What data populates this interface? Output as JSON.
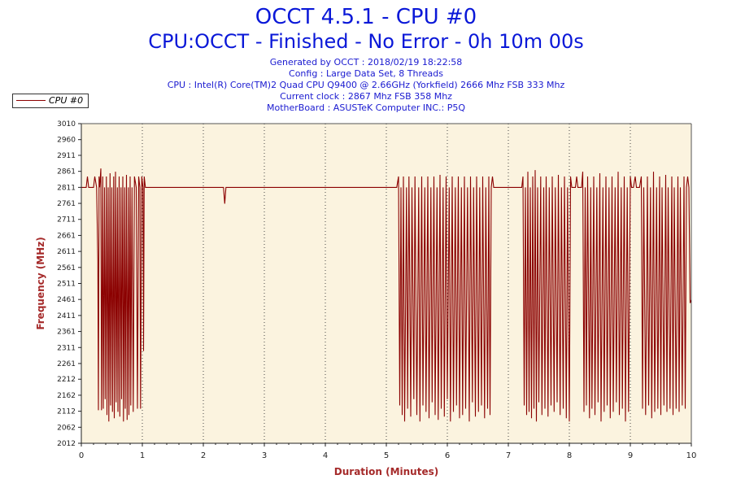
{
  "header": {
    "title": "OCCT 4.5.1 - CPU #0",
    "subtitle": "CPU:OCCT - Finished - No Error - 0h 10m 00s",
    "info_lines": [
      "Generated by OCCT : 2018/02/19 18:22:58",
      "Config : Large Data Set, 8 Threads",
      "CPU : Intel(R) Core(TM)2 Quad CPU Q9400 @ 2.66GHz (Yorkfield) 2666 Mhz FSB 333 Mhz",
      "Current clock : 2867 Mhz FSB 358 Mhz",
      "MotherBoard : ASUSTeK Computer INC.: P5Q"
    ]
  },
  "colors": {
    "title": "#0a18d8",
    "info": "#1a1ad0",
    "plot_background": "#fbf3df",
    "series_line": "#8b0000",
    "axis_label": "#a52a2a",
    "grid": "#444444"
  },
  "chart_data": {
    "type": "line",
    "xlabel": "Duration (Minutes)",
    "ylabel": "Frequency (MHz)",
    "xlim": [
      0,
      10
    ],
    "ylim": [
      2012,
      3010
    ],
    "x_ticks": [
      "0",
      "1",
      "2",
      "3",
      "4",
      "5",
      "6",
      "7",
      "8",
      "9",
      "10"
    ],
    "y_ticks": [
      "3010",
      "2960",
      "2911",
      "2861",
      "2811",
      "2761",
      "2711",
      "2661",
      "2611",
      "2561",
      "2511",
      "2461",
      "2411",
      "2361",
      "2311",
      "2261",
      "2212",
      "2162",
      "2112",
      "2062",
      "2012"
    ],
    "grid": "vertical dotted at each minute",
    "legend_position": "top-left",
    "series": [
      {
        "name": "CPU #0",
        "baseline": 2811,
        "points": [
          [
            0.0,
            2811
          ],
          [
            0.08,
            2811
          ],
          [
            0.1,
            2845
          ],
          [
            0.12,
            2811
          ],
          [
            0.2,
            2811
          ],
          [
            0.22,
            2845
          ],
          [
            0.25,
            2811
          ],
          [
            0.27,
            2580
          ],
          [
            0.28,
            2115
          ],
          [
            0.29,
            2845
          ],
          [
            0.3,
            2811
          ],
          [
            0.32,
            2870
          ],
          [
            0.33,
            2115
          ],
          [
            0.35,
            2845
          ],
          [
            0.36,
            2120
          ],
          [
            0.38,
            2811
          ],
          [
            0.39,
            2150
          ],
          [
            0.41,
            2845
          ],
          [
            0.42,
            2100
          ],
          [
            0.44,
            2811
          ],
          [
            0.45,
            2080
          ],
          [
            0.47,
            2855
          ],
          [
            0.48,
            2130
          ],
          [
            0.5,
            2811
          ],
          [
            0.51,
            2110
          ],
          [
            0.53,
            2845
          ],
          [
            0.54,
            2090
          ],
          [
            0.56,
            2860
          ],
          [
            0.57,
            2140
          ],
          [
            0.59,
            2811
          ],
          [
            0.6,
            2110
          ],
          [
            0.62,
            2845
          ],
          [
            0.63,
            2095
          ],
          [
            0.65,
            2811
          ],
          [
            0.66,
            2150
          ],
          [
            0.68,
            2845
          ],
          [
            0.69,
            2080
          ],
          [
            0.71,
            2811
          ],
          [
            0.72,
            2120
          ],
          [
            0.74,
            2850
          ],
          [
            0.75,
            2085
          ],
          [
            0.77,
            2811
          ],
          [
            0.78,
            2100
          ],
          [
            0.8,
            2845
          ],
          [
            0.81,
            2130
          ],
          [
            0.83,
            2811
          ],
          [
            0.85,
            2110
          ],
          [
            0.87,
            2845
          ],
          [
            0.9,
            2811
          ],
          [
            0.92,
            2120
          ],
          [
            0.94,
            2845
          ],
          [
            0.96,
            2811
          ],
          [
            0.97,
            2120
          ],
          [
            0.99,
            2845
          ],
          [
            1.01,
            2811
          ],
          [
            1.02,
            2300
          ],
          [
            1.03,
            2845
          ],
          [
            1.05,
            2811
          ],
          [
            2.33,
            2811
          ],
          [
            2.35,
            2760
          ],
          [
            2.37,
            2811
          ],
          [
            5.17,
            2811
          ],
          [
            5.2,
            2845
          ],
          [
            5.22,
            2130
          ],
          [
            5.24,
            2811
          ],
          [
            5.26,
            2100
          ],
          [
            5.28,
            2845
          ],
          [
            5.3,
            2080
          ],
          [
            5.33,
            2811
          ],
          [
            5.35,
            2120
          ],
          [
            5.37,
            2845
          ],
          [
            5.4,
            2095
          ],
          [
            5.42,
            2811
          ],
          [
            5.45,
            2150
          ],
          [
            5.47,
            2845
          ],
          [
            5.5,
            2100
          ],
          [
            5.53,
            2811
          ],
          [
            5.55,
            2080
          ],
          [
            5.58,
            2845
          ],
          [
            5.6,
            2130
          ],
          [
            5.63,
            2811
          ],
          [
            5.65,
            2110
          ],
          [
            5.68,
            2845
          ],
          [
            5.7,
            2090
          ],
          [
            5.73,
            2811
          ],
          [
            5.75,
            2140
          ],
          [
            5.78,
            2845
          ],
          [
            5.8,
            2100
          ],
          [
            5.83,
            2811
          ],
          [
            5.85,
            2085
          ],
          [
            5.88,
            2850
          ],
          [
            5.9,
            2120
          ],
          [
            5.93,
            2811
          ],
          [
            5.95,
            2095
          ],
          [
            5.98,
            2845
          ],
          [
            6.0,
            2150
          ],
          [
            6.03,
            2811
          ],
          [
            6.05,
            2080
          ],
          [
            6.08,
            2845
          ],
          [
            6.1,
            2110
          ],
          [
            6.13,
            2811
          ],
          [
            6.15,
            2130
          ],
          [
            6.18,
            2845
          ],
          [
            6.2,
            2090
          ],
          [
            6.23,
            2811
          ],
          [
            6.25,
            2100
          ],
          [
            6.28,
            2845
          ],
          [
            6.3,
            2120
          ],
          [
            6.33,
            2811
          ],
          [
            6.36,
            2080
          ],
          [
            6.38,
            2845
          ],
          [
            6.41,
            2140
          ],
          [
            6.43,
            2811
          ],
          [
            6.46,
            2095
          ],
          [
            6.48,
            2845
          ],
          [
            6.51,
            2110
          ],
          [
            6.53,
            2811
          ],
          [
            6.56,
            2130
          ],
          [
            6.58,
            2845
          ],
          [
            6.61,
            2090
          ],
          [
            6.63,
            2811
          ],
          [
            6.66,
            2120
          ],
          [
            6.68,
            2845
          ],
          [
            6.7,
            2100
          ],
          [
            6.72,
            2811
          ],
          [
            6.74,
            2845
          ],
          [
            6.76,
            2811
          ],
          [
            7.22,
            2811
          ],
          [
            7.24,
            2845
          ],
          [
            7.26,
            2130
          ],
          [
            7.28,
            2811
          ],
          [
            7.3,
            2100
          ],
          [
            7.32,
            2860
          ],
          [
            7.34,
            2110
          ],
          [
            7.36,
            2811
          ],
          [
            7.38,
            2090
          ],
          [
            7.4,
            2845
          ],
          [
            7.42,
            2120
          ],
          [
            7.44,
            2865
          ],
          [
            7.46,
            2080
          ],
          [
            7.48,
            2811
          ],
          [
            7.5,
            2140
          ],
          [
            7.53,
            2845
          ],
          [
            7.55,
            2100
          ],
          [
            7.58,
            2811
          ],
          [
            7.6,
            2120
          ],
          [
            7.62,
            2845
          ],
          [
            7.65,
            2095
          ],
          [
            7.67,
            2811
          ],
          [
            7.7,
            2130
          ],
          [
            7.72,
            2845
          ],
          [
            7.75,
            2110
          ],
          [
            7.77,
            2811
          ],
          [
            7.8,
            2140
          ],
          [
            7.82,
            2850
          ],
          [
            7.85,
            2100
          ],
          [
            7.87,
            2811
          ],
          [
            7.9,
            2120
          ],
          [
            7.92,
            2845
          ],
          [
            7.95,
            2090
          ],
          [
            7.97,
            2811
          ],
          [
            8.0,
            2080
          ],
          [
            8.02,
            2845
          ],
          [
            8.04,
            2811
          ],
          [
            8.1,
            2811
          ],
          [
            8.12,
            2845
          ],
          [
            8.14,
            2811
          ],
          [
            8.2,
            2811
          ],
          [
            8.22,
            2860
          ],
          [
            8.24,
            2110
          ],
          [
            8.26,
            2811
          ],
          [
            8.28,
            2130
          ],
          [
            8.3,
            2845
          ],
          [
            8.33,
            2090
          ],
          [
            8.35,
            2811
          ],
          [
            8.37,
            2120
          ],
          [
            8.4,
            2845
          ],
          [
            8.42,
            2100
          ],
          [
            8.45,
            2811
          ],
          [
            8.47,
            2140
          ],
          [
            8.5,
            2855
          ],
          [
            8.52,
            2080
          ],
          [
            8.55,
            2811
          ],
          [
            8.57,
            2110
          ],
          [
            8.6,
            2845
          ],
          [
            8.62,
            2130
          ],
          [
            8.65,
            2811
          ],
          [
            8.67,
            2090
          ],
          [
            8.7,
            2845
          ],
          [
            8.72,
            2110
          ],
          [
            8.75,
            2811
          ],
          [
            8.77,
            2140
          ],
          [
            8.8,
            2860
          ],
          [
            8.82,
            2100
          ],
          [
            8.85,
            2811
          ],
          [
            8.87,
            2120
          ],
          [
            8.9,
            2845
          ],
          [
            8.92,
            2080
          ],
          [
            8.95,
            2811
          ],
          [
            8.97,
            2110
          ],
          [
            9.0,
            2845
          ],
          [
            9.02,
            2811
          ],
          [
            9.05,
            2811
          ],
          [
            9.08,
            2845
          ],
          [
            9.1,
            2811
          ],
          [
            9.15,
            2811
          ],
          [
            9.18,
            2845
          ],
          [
            9.2,
            2120
          ],
          [
            9.22,
            2811
          ],
          [
            9.25,
            2100
          ],
          [
            9.28,
            2845
          ],
          [
            9.3,
            2130
          ],
          [
            9.33,
            2811
          ],
          [
            9.35,
            2090
          ],
          [
            9.38,
            2860
          ],
          [
            9.4,
            2110
          ],
          [
            9.43,
            2811
          ],
          [
            9.45,
            2120
          ],
          [
            9.48,
            2845
          ],
          [
            9.5,
            2100
          ],
          [
            9.52,
            2811
          ],
          [
            9.55,
            2130
          ],
          [
            9.58,
            2850
          ],
          [
            9.6,
            2110
          ],
          [
            9.62,
            2811
          ],
          [
            9.65,
            2120
          ],
          [
            9.68,
            2845
          ],
          [
            9.7,
            2100
          ],
          [
            9.72,
            2811
          ],
          [
            9.75,
            2120
          ],
          [
            9.78,
            2845
          ],
          [
            9.8,
            2110
          ],
          [
            9.82,
            2811
          ],
          [
            9.85,
            2130
          ],
          [
            9.88,
            2845
          ],
          [
            9.9,
            2120
          ],
          [
            9.92,
            2811
          ],
          [
            9.94,
            2845
          ],
          [
            9.96,
            2811
          ],
          [
            9.98,
            2450
          ],
          [
            10.0,
            2460
          ]
        ]
      }
    ]
  }
}
